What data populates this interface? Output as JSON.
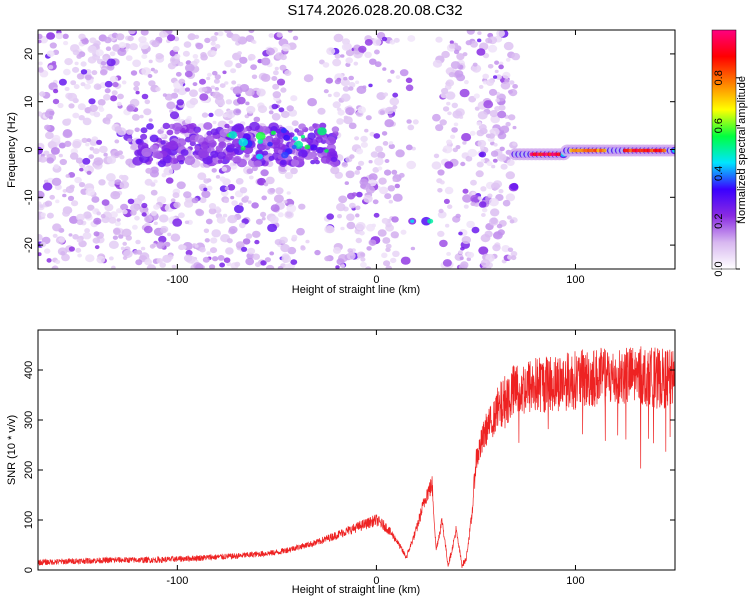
{
  "title": "S174.2026.028.20.08.C32",
  "chart_data": [
    {
      "type": "heatmap",
      "xlabel": "Height of straight line (km)",
      "ylabel": "Frequency (Hz)",
      "xlim": [
        -170,
        150
      ],
      "ylim": [
        -25,
        25
      ],
      "x_ticks": [
        -100,
        0,
        100
      ],
      "y_ticks": [
        -20,
        -10,
        0,
        10,
        20
      ],
      "grid": false,
      "colorbar": {
        "label": "Normalized spectral amplitude",
        "range": [
          0,
          1
        ],
        "ticks": [
          0.0,
          0.2,
          0.4,
          0.6,
          0.8
        ],
        "tick_labels": [
          "0.0",
          "0.2",
          "0.4",
          "0.6",
          "0.8"
        ],
        "colors": [
          "#ffffff",
          "#d8b8f0",
          "#8a2be2",
          "#3a00ff",
          "#00e5ff",
          "#00ff40",
          "#ffff00",
          "#ff8000",
          "#ff0000",
          "#ff0080"
        ]
      },
      "features": [
        {
          "name": "noise-field",
          "x_range": [
            -170,
            70
          ],
          "freq_range": [
            -25,
            25
          ],
          "amplitude": 0.15
        },
        {
          "name": "low-band",
          "x_range": [
            -120,
            -20
          ],
          "freq_center": 1,
          "amplitude": 0.35
        },
        {
          "name": "weak-blob",
          "x_range": [
            16,
            32
          ],
          "freq_center": -15,
          "amplitude": 0.5
        },
        {
          "name": "strong-band",
          "x_range": [
            70,
            150
          ],
          "freq_center": -1,
          "amplitude": 0.95
        }
      ]
    },
    {
      "type": "line",
      "xlabel": "Height of straight line (km)",
      "ylabel": "SNR (10 * v/v)",
      "xlim": [
        -170,
        150
      ],
      "ylim": [
        0,
        480
      ],
      "x_ticks": [
        -100,
        0,
        100
      ],
      "y_ticks": [
        0,
        100,
        200,
        300,
        400
      ],
      "grid": false,
      "series": [
        {
          "color": "#ee2222",
          "x": [
            -170,
            -150,
            -130,
            -110,
            -90,
            -70,
            -50,
            -40,
            -30,
            -20,
            -10,
            0,
            5,
            10,
            15,
            20,
            25,
            28,
            30,
            33,
            36,
            38,
            40,
            43,
            45,
            48,
            50,
            55,
            60,
            65,
            70,
            80,
            90,
            100,
            110,
            120,
            130,
            140,
            150
          ],
          "y": [
            15,
            18,
            20,
            20,
            24,
            28,
            35,
            45,
            55,
            70,
            85,
            100,
            85,
            60,
            25,
            80,
            150,
            170,
            40,
            100,
            10,
            40,
            80,
            10,
            20,
            110,
            220,
            280,
            310,
            340,
            360,
            370,
            375,
            380,
            385,
            385,
            390,
            385,
            380
          ]
        }
      ]
    }
  ]
}
